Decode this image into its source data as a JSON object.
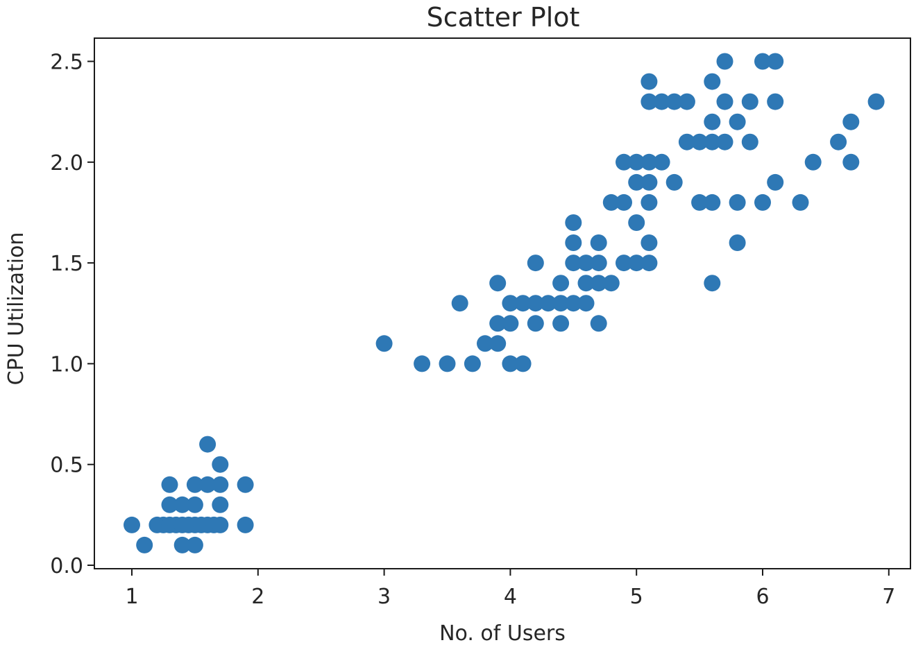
{
  "chart_data": {
    "type": "scatter",
    "title": "Scatter Plot",
    "xlabel": "No. of Users",
    "ylabel": "CPU Utilization",
    "xlim": [
      0.9,
      7.2
    ],
    "ylim": [
      -0.1,
      2.6
    ],
    "xticks": [
      1,
      2,
      3,
      4,
      5,
      6,
      7
    ],
    "xtick_labels": [
      "1",
      "2",
      "3",
      "4",
      "5",
      "6",
      "7"
    ],
    "yticks": [
      0.0,
      0.5,
      1.0,
      1.5,
      2.0,
      2.5
    ],
    "ytick_labels": [
      "0.0",
      "0.5",
      "1.0",
      "1.5",
      "2.0",
      "2.5"
    ],
    "grid": false,
    "marker_color": "#2e78b5",
    "points": [
      {
        "x": 1.0,
        "y": 0.2
      },
      {
        "x": 1.1,
        "y": 0.1
      },
      {
        "x": 1.2,
        "y": 0.2
      },
      {
        "x": 1.25,
        "y": 0.2
      },
      {
        "x": 1.3,
        "y": 0.2
      },
      {
        "x": 1.3,
        "y": 0.3
      },
      {
        "x": 1.3,
        "y": 0.4
      },
      {
        "x": 1.35,
        "y": 0.2
      },
      {
        "x": 1.4,
        "y": 0.2
      },
      {
        "x": 1.4,
        "y": 0.3
      },
      {
        "x": 1.4,
        "y": 0.1
      },
      {
        "x": 1.45,
        "y": 0.2
      },
      {
        "x": 1.5,
        "y": 0.2
      },
      {
        "x": 1.5,
        "y": 0.1
      },
      {
        "x": 1.5,
        "y": 0.3
      },
      {
        "x": 1.5,
        "y": 0.4
      },
      {
        "x": 1.55,
        "y": 0.2
      },
      {
        "x": 1.6,
        "y": 0.2
      },
      {
        "x": 1.6,
        "y": 0.4
      },
      {
        "x": 1.6,
        "y": 0.6
      },
      {
        "x": 1.65,
        "y": 0.2
      },
      {
        "x": 1.7,
        "y": 0.2
      },
      {
        "x": 1.7,
        "y": 0.3
      },
      {
        "x": 1.7,
        "y": 0.4
      },
      {
        "x": 1.7,
        "y": 0.5
      },
      {
        "x": 1.9,
        "y": 0.2
      },
      {
        "x": 1.9,
        "y": 0.4
      },
      {
        "x": 3.0,
        "y": 1.1
      },
      {
        "x": 3.3,
        "y": 1.0
      },
      {
        "x": 3.5,
        "y": 1.0
      },
      {
        "x": 3.6,
        "y": 1.3
      },
      {
        "x": 3.7,
        "y": 1.0
      },
      {
        "x": 3.8,
        "y": 1.1
      },
      {
        "x": 3.9,
        "y": 1.1
      },
      {
        "x": 3.9,
        "y": 1.2
      },
      {
        "x": 3.9,
        "y": 1.4
      },
      {
        "x": 4.0,
        "y": 1.0
      },
      {
        "x": 4.0,
        "y": 1.2
      },
      {
        "x": 4.0,
        "y": 1.3
      },
      {
        "x": 4.1,
        "y": 1.0
      },
      {
        "x": 4.1,
        "y": 1.3
      },
      {
        "x": 4.2,
        "y": 1.2
      },
      {
        "x": 4.2,
        "y": 1.3
      },
      {
        "x": 4.2,
        "y": 1.5
      },
      {
        "x": 4.3,
        "y": 1.3
      },
      {
        "x": 4.4,
        "y": 1.2
      },
      {
        "x": 4.4,
        "y": 1.3
      },
      {
        "x": 4.4,
        "y": 1.4
      },
      {
        "x": 4.5,
        "y": 1.3
      },
      {
        "x": 4.5,
        "y": 1.5
      },
      {
        "x": 4.5,
        "y": 1.6
      },
      {
        "x": 4.5,
        "y": 1.7
      },
      {
        "x": 4.6,
        "y": 1.3
      },
      {
        "x": 4.6,
        "y": 1.4
      },
      {
        "x": 4.6,
        "y": 1.5
      },
      {
        "x": 4.7,
        "y": 1.2
      },
      {
        "x": 4.7,
        "y": 1.4
      },
      {
        "x": 4.7,
        "y": 1.5
      },
      {
        "x": 4.7,
        "y": 1.6
      },
      {
        "x": 4.8,
        "y": 1.4
      },
      {
        "x": 4.8,
        "y": 1.8
      },
      {
        "x": 4.9,
        "y": 1.5
      },
      {
        "x": 4.9,
        "y": 1.8
      },
      {
        "x": 4.9,
        "y": 2.0
      },
      {
        "x": 5.0,
        "y": 1.5
      },
      {
        "x": 5.0,
        "y": 1.7
      },
      {
        "x": 5.0,
        "y": 1.9
      },
      {
        "x": 5.0,
        "y": 2.0
      },
      {
        "x": 5.1,
        "y": 1.5
      },
      {
        "x": 5.1,
        "y": 1.6
      },
      {
        "x": 5.1,
        "y": 1.8
      },
      {
        "x": 5.1,
        "y": 1.9
      },
      {
        "x": 5.1,
        "y": 2.0
      },
      {
        "x": 5.1,
        "y": 2.3
      },
      {
        "x": 5.1,
        "y": 2.4
      },
      {
        "x": 5.2,
        "y": 2.0
      },
      {
        "x": 5.2,
        "y": 2.3
      },
      {
        "x": 5.3,
        "y": 1.9
      },
      {
        "x": 5.3,
        "y": 2.3
      },
      {
        "x": 5.4,
        "y": 2.1
      },
      {
        "x": 5.4,
        "y": 2.3
      },
      {
        "x": 5.5,
        "y": 1.8
      },
      {
        "x": 5.5,
        "y": 2.1
      },
      {
        "x": 5.6,
        "y": 1.4
      },
      {
        "x": 5.6,
        "y": 1.8
      },
      {
        "x": 5.6,
        "y": 2.1
      },
      {
        "x": 5.6,
        "y": 2.2
      },
      {
        "x": 5.6,
        "y": 2.4
      },
      {
        "x": 5.7,
        "y": 2.1
      },
      {
        "x": 5.7,
        "y": 2.3
      },
      {
        "x": 5.7,
        "y": 2.5
      },
      {
        "x": 5.8,
        "y": 1.6
      },
      {
        "x": 5.8,
        "y": 1.8
      },
      {
        "x": 5.8,
        "y": 2.2
      },
      {
        "x": 5.9,
        "y": 2.1
      },
      {
        "x": 5.9,
        "y": 2.3
      },
      {
        "x": 6.0,
        "y": 1.8
      },
      {
        "x": 6.0,
        "y": 2.5
      },
      {
        "x": 6.1,
        "y": 1.9
      },
      {
        "x": 6.1,
        "y": 2.3
      },
      {
        "x": 6.1,
        "y": 2.5
      },
      {
        "x": 6.3,
        "y": 1.8
      },
      {
        "x": 6.4,
        "y": 2.0
      },
      {
        "x": 6.6,
        "y": 2.1
      },
      {
        "x": 6.7,
        "y": 2.0
      },
      {
        "x": 6.7,
        "y": 2.2
      },
      {
        "x": 6.9,
        "y": 2.3
      }
    ]
  }
}
